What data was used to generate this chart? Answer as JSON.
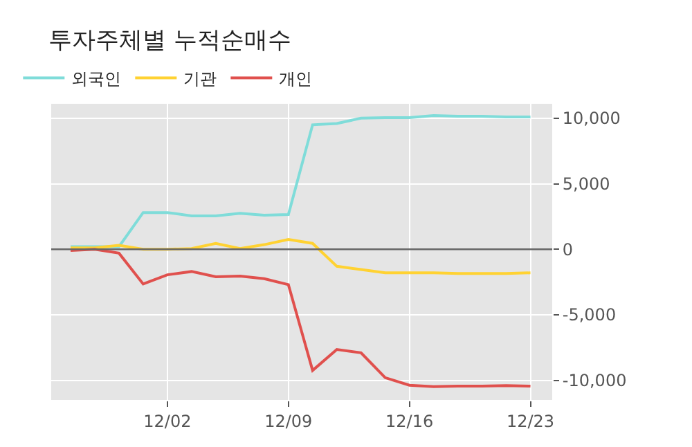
{
  "chart_data": {
    "type": "line",
    "title": "투자주체별 누적순매수",
    "categories": [
      null,
      null,
      null,
      null,
      "12/02",
      null,
      null,
      null,
      null,
      "12/09",
      null,
      null,
      null,
      null,
      "12/16",
      null,
      null,
      null,
      null,
      "12/23"
    ],
    "series": [
      {
        "name": "외국인",
        "color": "#7fdcd9",
        "values": [
          200,
          200,
          200,
          2800,
          2800,
          2550,
          2550,
          2750,
          2600,
          2650,
          9500,
          9600,
          10000,
          10050,
          10050,
          10200,
          10150,
          10150,
          10100,
          10100
        ]
      },
      {
        "name": "기관",
        "color": "#ffd232",
        "values": [
          100,
          100,
          300,
          0,
          0,
          50,
          450,
          50,
          350,
          750,
          450,
          -1300,
          -1550,
          -1800,
          -1800,
          -1800,
          -1850,
          -1850,
          -1850,
          -1800
        ]
      },
      {
        "name": "개인",
        "color": "#e0504d",
        "values": [
          -100,
          0,
          -300,
          -2650,
          -1950,
          -1700,
          -2100,
          -2050,
          -2250,
          -2700,
          -9250,
          -7650,
          -7900,
          -9800,
          -10380,
          -10480,
          -10450,
          -10450,
          -10400,
          -10450
        ]
      }
    ],
    "ylim": [
      -11500,
      11100
    ],
    "yticks": [
      {
        "value": -10000,
        "label": "-10,000"
      },
      {
        "value": -5000,
        "label": "-5,000"
      },
      0,
      {
        "value": 5000,
        "label": "5,000"
      },
      {
        "value": 10000,
        "label": "10,000"
      }
    ],
    "ref_lines": [
      {
        "axis": "y",
        "value": 0,
        "color": "#666666"
      }
    ],
    "grid": true,
    "legend": "top left",
    "marker": "none",
    "line_style": "solid"
  }
}
